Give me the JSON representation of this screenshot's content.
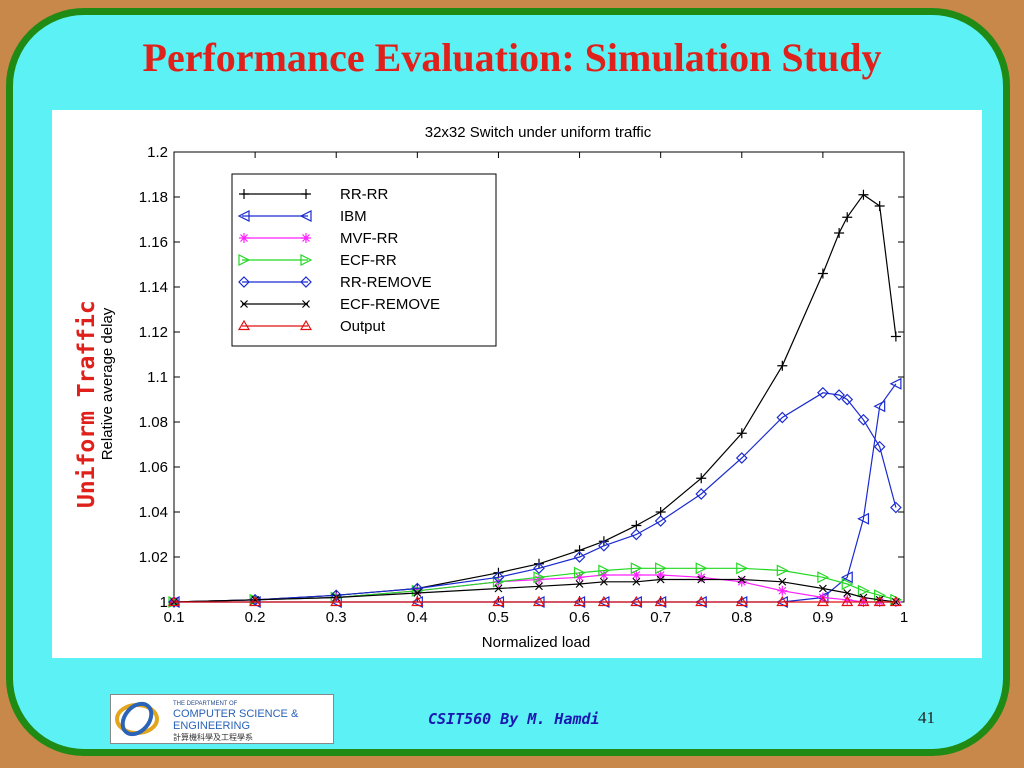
{
  "slide": {
    "title": "Performance Evaluation: Simulation Study",
    "side_label": "Uniform Traffic",
    "footer": "CSIT560 By M. Hamdi",
    "page_number": "41",
    "logo": {
      "line1": "THE DEPARTMENT OF",
      "line2": "COMPUTER SCIENCE &",
      "line3": "ENGINEERING",
      "line4": "計算機科學及工程學系"
    }
  },
  "colors": {
    "background": "#c8884a",
    "slide": "#5cf2f5",
    "border": "#1f8a14",
    "title": "#e0201a",
    "footer": "#1a18b0"
  },
  "chart_data": {
    "type": "line",
    "title": "32x32 Switch under uniform traffic",
    "xlabel": "Normalized load",
    "ylabel": "Relative average delay",
    "xlim": [
      0.1,
      1
    ],
    "ylim": [
      1,
      1.2
    ],
    "xticks": [
      0.1,
      0.2,
      0.3,
      0.4,
      0.5,
      0.6,
      0.7,
      0.8,
      0.9,
      1
    ],
    "yticks": [
      1,
      1.02,
      1.04,
      1.06,
      1.08,
      1.1,
      1.12,
      1.14,
      1.16,
      1.18,
      1.2
    ],
    "grid": false,
    "legend_position": "top-left",
    "series": [
      {
        "name": "RR-RR",
        "color": "#000000",
        "marker": "plus",
        "points": [
          [
            0.1,
            1.0
          ],
          [
            0.2,
            1.001
          ],
          [
            0.3,
            1.003
          ],
          [
            0.4,
            1.006
          ],
          [
            0.5,
            1.013
          ],
          [
            0.55,
            1.017
          ],
          [
            0.6,
            1.023
          ],
          [
            0.63,
            1.027
          ],
          [
            0.67,
            1.034
          ],
          [
            0.7,
            1.04
          ],
          [
            0.75,
            1.055
          ],
          [
            0.8,
            1.075
          ],
          [
            0.85,
            1.105
          ],
          [
            0.9,
            1.146
          ],
          [
            0.92,
            1.164
          ],
          [
            0.93,
            1.171
          ],
          [
            0.95,
            1.181
          ],
          [
            0.97,
            1.176
          ],
          [
            0.99,
            1.118
          ]
        ]
      },
      {
        "name": "IBM",
        "color": "#1a2ad0",
        "marker": "triangle-left",
        "points": [
          [
            0.1,
            1.0
          ],
          [
            0.2,
            1.0
          ],
          [
            0.3,
            1.0
          ],
          [
            0.4,
            1.0
          ],
          [
            0.5,
            1.0
          ],
          [
            0.55,
            1.0
          ],
          [
            0.6,
            1.0
          ],
          [
            0.63,
            1.0
          ],
          [
            0.67,
            1.0
          ],
          [
            0.7,
            1.0
          ],
          [
            0.75,
            1.0
          ],
          [
            0.8,
            1.0
          ],
          [
            0.85,
            1.0
          ],
          [
            0.9,
            1.002
          ],
          [
            0.93,
            1.011
          ],
          [
            0.95,
            1.037
          ],
          [
            0.97,
            1.087
          ],
          [
            0.99,
            1.097
          ]
        ]
      },
      {
        "name": "MVF-RR",
        "color": "#ff20ff",
        "marker": "asterisk",
        "points": [
          [
            0.1,
            1.0
          ],
          [
            0.2,
            1.001
          ],
          [
            0.3,
            1.002
          ],
          [
            0.4,
            1.005
          ],
          [
            0.5,
            1.009
          ],
          [
            0.55,
            1.01
          ],
          [
            0.6,
            1.011
          ],
          [
            0.63,
            1.012
          ],
          [
            0.67,
            1.012
          ],
          [
            0.7,
            1.012
          ],
          [
            0.75,
            1.011
          ],
          [
            0.8,
            1.009
          ],
          [
            0.85,
            1.005
          ],
          [
            0.9,
            1.002
          ],
          [
            0.93,
            1.001
          ],
          [
            0.95,
            1.0
          ],
          [
            0.97,
            1.0
          ],
          [
            0.99,
            1.0
          ]
        ]
      },
      {
        "name": "ECF-RR",
        "color": "#22d822",
        "marker": "triangle-right",
        "points": [
          [
            0.1,
            1.0
          ],
          [
            0.2,
            1.001
          ],
          [
            0.3,
            1.002
          ],
          [
            0.4,
            1.005
          ],
          [
            0.5,
            1.009
          ],
          [
            0.55,
            1.011
          ],
          [
            0.6,
            1.013
          ],
          [
            0.63,
            1.014
          ],
          [
            0.67,
            1.015
          ],
          [
            0.7,
            1.015
          ],
          [
            0.75,
            1.015
          ],
          [
            0.8,
            1.015
          ],
          [
            0.85,
            1.014
          ],
          [
            0.9,
            1.011
          ],
          [
            0.93,
            1.008
          ],
          [
            0.95,
            1.005
          ],
          [
            0.97,
            1.003
          ],
          [
            0.99,
            1.001
          ]
        ]
      },
      {
        "name": "RR-REMOVE",
        "color": "#1a2ad0",
        "marker": "diamond",
        "points": [
          [
            0.1,
            1.0
          ],
          [
            0.2,
            1.001
          ],
          [
            0.3,
            1.003
          ],
          [
            0.4,
            1.006
          ],
          [
            0.5,
            1.011
          ],
          [
            0.55,
            1.015
          ],
          [
            0.6,
            1.02
          ],
          [
            0.63,
            1.025
          ],
          [
            0.67,
            1.03
          ],
          [
            0.7,
            1.036
          ],
          [
            0.75,
            1.048
          ],
          [
            0.8,
            1.064
          ],
          [
            0.85,
            1.082
          ],
          [
            0.9,
            1.093
          ],
          [
            0.92,
            1.092
          ],
          [
            0.93,
            1.09
          ],
          [
            0.95,
            1.081
          ],
          [
            0.97,
            1.069
          ],
          [
            0.99,
            1.042
          ]
        ]
      },
      {
        "name": "ECF-REMOVE",
        "color": "#000000",
        "marker": "x",
        "points": [
          [
            0.1,
            1.0
          ],
          [
            0.2,
            1.001
          ],
          [
            0.3,
            1.002
          ],
          [
            0.4,
            1.004
          ],
          [
            0.5,
            1.006
          ],
          [
            0.55,
            1.007
          ],
          [
            0.6,
            1.008
          ],
          [
            0.63,
            1.009
          ],
          [
            0.67,
            1.009
          ],
          [
            0.7,
            1.01
          ],
          [
            0.75,
            1.01
          ],
          [
            0.8,
            1.01
          ],
          [
            0.85,
            1.009
          ],
          [
            0.9,
            1.006
          ],
          [
            0.93,
            1.004
          ],
          [
            0.95,
            1.002
          ],
          [
            0.97,
            1.001
          ],
          [
            0.99,
            1.0
          ]
        ]
      },
      {
        "name": "Output",
        "color": "#e01010",
        "marker": "triangle-up",
        "points": [
          [
            0.1,
            1.0
          ],
          [
            0.2,
            1.0
          ],
          [
            0.3,
            1.0
          ],
          [
            0.4,
            1.0
          ],
          [
            0.5,
            1.0
          ],
          [
            0.55,
            1.0
          ],
          [
            0.6,
            1.0
          ],
          [
            0.63,
            1.0
          ],
          [
            0.67,
            1.0
          ],
          [
            0.7,
            1.0
          ],
          [
            0.75,
            1.0
          ],
          [
            0.8,
            1.0
          ],
          [
            0.85,
            1.0
          ],
          [
            0.9,
            1.0
          ],
          [
            0.93,
            1.0
          ],
          [
            0.95,
            1.0
          ],
          [
            0.97,
            1.0
          ],
          [
            0.99,
            1.0
          ]
        ]
      }
    ]
  }
}
